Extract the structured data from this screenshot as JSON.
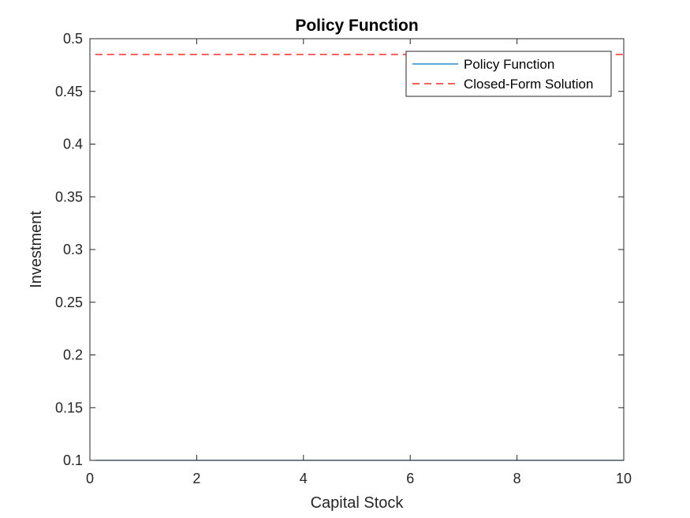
{
  "chart_data": {
    "type": "line",
    "title": "Policy Function",
    "xlabel": "Capital Stock",
    "ylabel": "Investment",
    "xlim": [
      0,
      10
    ],
    "ylim": [
      0.1,
      0.5
    ],
    "xticks": [
      0,
      2,
      4,
      6,
      8,
      10
    ],
    "yticks": [
      0.1,
      0.15,
      0.2,
      0.25,
      0.3,
      0.35,
      0.4,
      0.45,
      0.5
    ],
    "xtick_labels": [
      "0",
      "2",
      "4",
      "6",
      "8",
      "10"
    ],
    "ytick_labels": [
      "0.1",
      "0.15",
      "0.2",
      "0.25",
      "0.3",
      "0.35",
      "0.4",
      "0.45",
      "0.5"
    ],
    "grid": false,
    "legend_position": "top-right",
    "series": [
      {
        "name": "Policy Function",
        "color": "#0072bd",
        "style": "solid",
        "x": [
          0.1,
          10
        ],
        "y": [
          0.1,
          0.1
        ]
      },
      {
        "name": "Closed-Form Solution",
        "color": "#ff0000",
        "style": "dashed",
        "x": [
          0.1,
          10
        ],
        "y": [
          0.485,
          0.485
        ]
      }
    ]
  }
}
